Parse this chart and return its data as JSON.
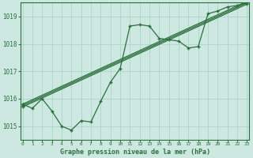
{
  "title": "Graphe pression niveau de la mer (hPa)",
  "bg_color": "#cce8e0",
  "line_color": "#2d6e3e",
  "grid_color": "#aad4c8",
  "x_min": 0,
  "x_max": 23,
  "y_min": 1014.5,
  "y_max": 1019.5,
  "yticks": [
    1015,
    1016,
    1017,
    1018,
    1019
  ],
  "xticks": [
    0,
    1,
    2,
    3,
    4,
    5,
    6,
    7,
    8,
    9,
    10,
    11,
    12,
    13,
    14,
    15,
    16,
    17,
    18,
    19,
    20,
    21,
    22,
    23
  ],
  "series": [
    {
      "x": [
        0,
        1,
        2,
        3,
        4,
        5,
        6,
        7,
        8,
        9,
        10,
        11,
        12,
        13,
        14,
        15,
        16,
        17,
        18,
        19,
        20,
        21,
        22,
        23
      ],
      "y": [
        1015.8,
        1015.65,
        1016.0,
        1015.55,
        1015.0,
        1014.85,
        1015.2,
        1015.15,
        1015.9,
        1016.6,
        1017.1,
        1018.65,
        1018.7,
        1018.65,
        1018.2,
        1018.15,
        1018.1,
        1017.85,
        1017.9,
        1019.1,
        1019.2,
        1019.35,
        1019.4,
        1019.5
      ]
    },
    {
      "x": [
        0,
        23
      ],
      "y": [
        1015.7,
        1019.45
      ]
    },
    {
      "x": [
        0,
        23
      ],
      "y": [
        1015.75,
        1019.5
      ]
    },
    {
      "x": [
        0,
        23
      ],
      "y": [
        1015.8,
        1019.55
      ]
    }
  ]
}
